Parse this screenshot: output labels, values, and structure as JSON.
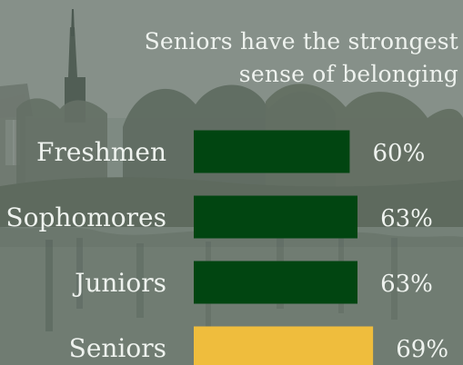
{
  "colors": {
    "normal_bar": "#014511",
    "highlight_bar": "#efbd3d",
    "text": "#eef2ee"
  },
  "title_lines": [
    "Seniors have the strongest",
    "sense of belonging"
  ],
  "chart_data": {
    "type": "bar",
    "orientation": "horizontal",
    "title": "Seniors have the strongest sense of belonging",
    "xlabel": "",
    "ylabel": "",
    "grid": false,
    "legend": "none",
    "xlim": [
      0,
      100
    ],
    "categories": [
      "Freshmen",
      "Sophomores",
      "Juniors",
      "Seniors"
    ],
    "values": [
      60,
      63,
      63,
      69
    ],
    "value_labels": [
      "60%",
      "63%",
      "63%",
      "69%"
    ],
    "highlight_category": "Seniors"
  }
}
